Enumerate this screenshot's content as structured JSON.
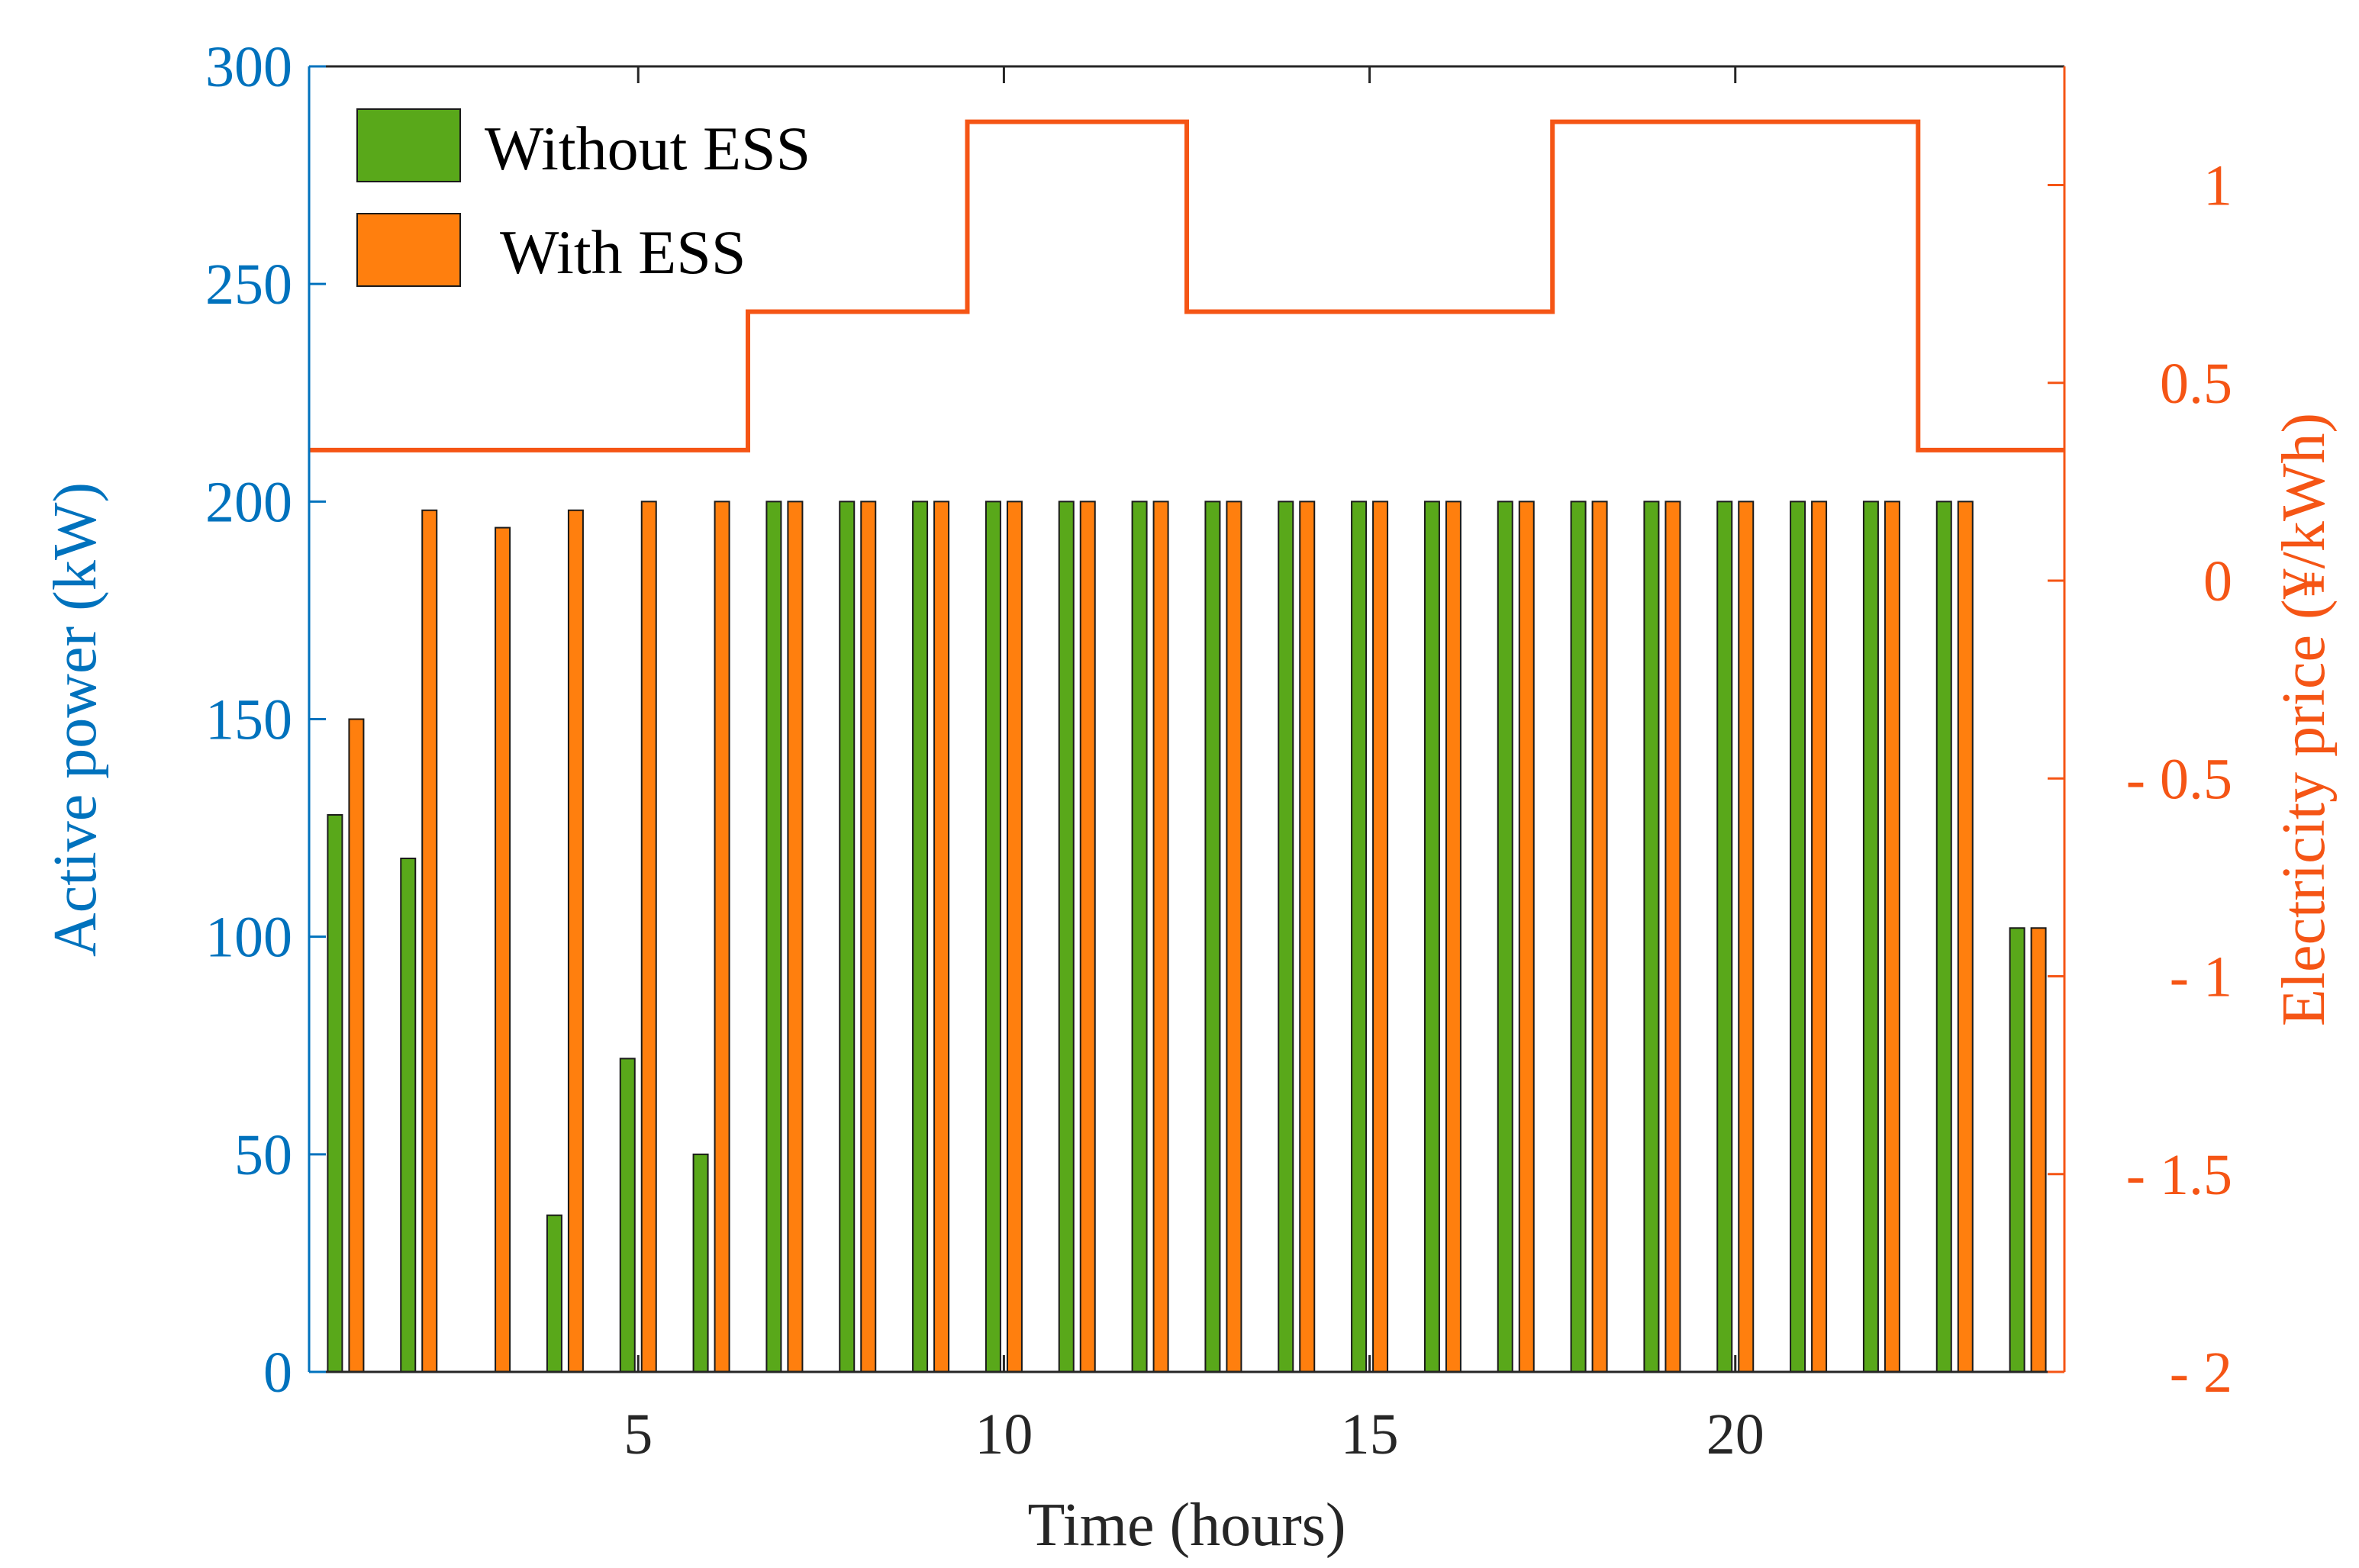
{
  "chart_data": {
    "type": "bar",
    "x": [
      1,
      2,
      3,
      4,
      5,
      6,
      7,
      8,
      9,
      10,
      11,
      12,
      13,
      14,
      15,
      16,
      17,
      18,
      19,
      20,
      21,
      22,
      23,
      24
    ],
    "series": [
      {
        "name": "Without ESS",
        "color": "#59A81A",
        "axis": "left",
        "values": [
          128,
          118,
          0,
          36,
          72,
          50,
          200,
          200,
          200,
          200,
          200,
          200,
          200,
          200,
          200,
          200,
          200,
          200,
          200,
          200,
          200,
          200,
          200,
          102
        ]
      },
      {
        "name": "With ESS",
        "color": "#FF7F0E",
        "axis": "left",
        "values": [
          150,
          198,
          194,
          198,
          200,
          200,
          200,
          200,
          200,
          200,
          200,
          200,
          200,
          200,
          200,
          200,
          200,
          200,
          200,
          200,
          200,
          200,
          200,
          102
        ]
      }
    ],
    "price_line": {
      "type": "step",
      "axis": "right",
      "color": "#F55515",
      "points": [
        [
          0.5,
          0.33
        ],
        [
          6.5,
          0.33
        ],
        [
          6.5,
          0.68
        ],
        [
          9.5,
          0.68
        ],
        [
          9.5,
          1.16
        ],
        [
          12.5,
          1.16
        ],
        [
          12.5,
          0.68
        ],
        [
          17.5,
          0.68
        ],
        [
          17.5,
          1.16
        ],
        [
          22.5,
          1.16
        ],
        [
          22.5,
          0.33
        ],
        [
          24.5,
          0.33
        ]
      ]
    },
    "xlabel": "Time (hours)",
    "ylabel_left": "Active power (kW)",
    "ylabel_right": "Electricity price (¥/kWh)",
    "xlim": [
      0.5,
      24.5
    ],
    "ylim_left": [
      0,
      300
    ],
    "ylim_right": [
      -2,
      1.3
    ],
    "xticks": [
      5,
      10,
      15,
      20
    ],
    "yticks_left": [
      0,
      50,
      100,
      150,
      200,
      250,
      300
    ],
    "yticks_right": [
      -2,
      -1.5,
      -1,
      -0.5,
      0,
      0.5,
      1
    ],
    "ytick_labels_right": [
      "- 2",
      "- 1.5",
      "- 1",
      "- 0.5",
      "0",
      "0.5",
      "1"
    ],
    "left_axis_color": "#0072BD",
    "right_axis_color": "#F55515",
    "legend_position": "top-left",
    "grid": false
  }
}
